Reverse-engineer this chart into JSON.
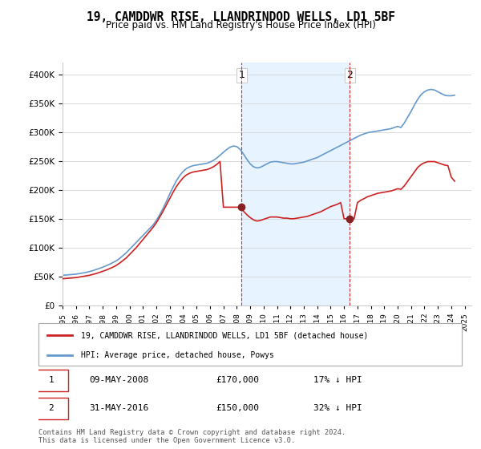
{
  "title": "19, CAMDDWR RISE, LLANDRINDOD WELLS, LD1 5BF",
  "subtitle": "Price paid vs. HM Land Registry's House Price Index (HPI)",
  "hpi_label": "HPI: Average price, detached house, Powys",
  "property_label": "19, CAMDDWR RISE, LLANDRINDOD WELLS, LD1 5BF (detached house)",
  "sale1_date": "09-MAY-2008",
  "sale1_price": 170000,
  "sale1_pct": "17% ↓ HPI",
  "sale2_date": "31-MAY-2016",
  "sale2_price": 150000,
  "sale2_pct": "32% ↓ HPI",
  "sale1_x": 2008.36,
  "sale2_x": 2016.42,
  "ylim": [
    0,
    420000
  ],
  "xlim_start": 1995,
  "xlim_end": 2025.5,
  "hpi_color": "#6699cc",
  "property_color": "#cc2222",
  "sale_marker_color": "#882222",
  "vline_color": "#cc3333",
  "shading_color": "#ddeeff",
  "background_color": "#f5f5f5",
  "footer": "Contains HM Land Registry data © Crown copyright and database right 2024.\nThis data is licensed under the Open Government Licence v3.0.",
  "hpi_data_x": [
    1995.0,
    1995.25,
    1995.5,
    1995.75,
    1996.0,
    1996.25,
    1996.5,
    1996.75,
    1997.0,
    1997.25,
    1997.5,
    1997.75,
    1998.0,
    1998.25,
    1998.5,
    1998.75,
    1999.0,
    1999.25,
    1999.5,
    1999.75,
    2000.0,
    2000.25,
    2000.5,
    2000.75,
    2001.0,
    2001.25,
    2001.5,
    2001.75,
    2002.0,
    2002.25,
    2002.5,
    2002.75,
    2003.0,
    2003.25,
    2003.5,
    2003.75,
    2004.0,
    2004.25,
    2004.5,
    2004.75,
    2005.0,
    2005.25,
    2005.5,
    2005.75,
    2006.0,
    2006.25,
    2006.5,
    2006.75,
    2007.0,
    2007.25,
    2007.5,
    2007.75,
    2008.0,
    2008.25,
    2008.5,
    2008.75,
    2009.0,
    2009.25,
    2009.5,
    2009.75,
    2010.0,
    2010.25,
    2010.5,
    2010.75,
    2011.0,
    2011.25,
    2011.5,
    2011.75,
    2012.0,
    2012.25,
    2012.5,
    2012.75,
    2013.0,
    2013.25,
    2013.5,
    2013.75,
    2014.0,
    2014.25,
    2014.5,
    2014.75,
    2015.0,
    2015.25,
    2015.5,
    2015.75,
    2016.0,
    2016.25,
    2016.5,
    2016.75,
    2017.0,
    2017.25,
    2017.5,
    2017.75,
    2018.0,
    2018.25,
    2018.5,
    2018.75,
    2019.0,
    2019.25,
    2019.5,
    2019.75,
    2020.0,
    2020.25,
    2020.5,
    2020.75,
    2021.0,
    2021.25,
    2021.5,
    2021.75,
    2022.0,
    2022.25,
    2022.5,
    2022.75,
    2023.0,
    2023.25,
    2023.5,
    2023.75,
    2024.0,
    2024.25
  ],
  "hpi_data_y": [
    52000,
    52500,
    53000,
    53500,
    54000,
    55000,
    56000,
    57000,
    58500,
    60000,
    62000,
    64000,
    66000,
    68500,
    71000,
    74000,
    77000,
    81000,
    86000,
    91000,
    97000,
    103000,
    109000,
    115000,
    121000,
    127000,
    133000,
    139000,
    147000,
    157000,
    168000,
    180000,
    193000,
    205000,
    216000,
    225000,
    232000,
    237000,
    240000,
    242000,
    243000,
    244000,
    245000,
    246000,
    248000,
    251000,
    255000,
    260000,
    265000,
    270000,
    274000,
    276000,
    275000,
    270000,
    262000,
    253000,
    245000,
    240000,
    238000,
    239000,
    242000,
    245000,
    248000,
    249000,
    249000,
    248000,
    247000,
    246000,
    245000,
    245000,
    246000,
    247000,
    248000,
    250000,
    252000,
    254000,
    256000,
    259000,
    262000,
    265000,
    268000,
    271000,
    274000,
    277000,
    280000,
    283000,
    286000,
    289000,
    292000,
    295000,
    297000,
    299000,
    300000,
    301000,
    302000,
    303000,
    304000,
    305000,
    306000,
    308000,
    310000,
    308000,
    316000,
    326000,
    336000,
    347000,
    357000,
    365000,
    370000,
    373000,
    374000,
    373000,
    370000,
    367000,
    364000,
    363000,
    363000,
    364000
  ],
  "prop_data_x": [
    1995.0,
    1995.25,
    1995.5,
    1995.75,
    1996.0,
    1996.25,
    1996.5,
    1996.75,
    1997.0,
    1997.25,
    1997.5,
    1997.75,
    1998.0,
    1998.25,
    1998.5,
    1998.75,
    1999.0,
    1999.25,
    1999.5,
    1999.75,
    2000.0,
    2000.25,
    2000.5,
    2000.75,
    2001.0,
    2001.25,
    2001.5,
    2001.75,
    2002.0,
    2002.25,
    2002.5,
    2002.75,
    2003.0,
    2003.25,
    2003.5,
    2003.75,
    2004.0,
    2004.25,
    2004.5,
    2004.75,
    2005.0,
    2005.25,
    2005.5,
    2005.75,
    2006.0,
    2006.25,
    2006.5,
    2006.75,
    2007.0,
    2007.25,
    2007.5,
    2007.75,
    2008.0,
    2008.25,
    2008.5,
    2008.75,
    2009.0,
    2009.25,
    2009.5,
    2009.75,
    2010.0,
    2010.25,
    2010.5,
    2010.75,
    2011.0,
    2011.25,
    2011.5,
    2011.75,
    2012.0,
    2012.25,
    2012.5,
    2012.75,
    2013.0,
    2013.25,
    2013.5,
    2013.75,
    2014.0,
    2014.25,
    2014.5,
    2014.75,
    2015.0,
    2015.25,
    2015.5,
    2015.75,
    2016.0,
    2016.25,
    2016.5,
    2016.75,
    2017.0,
    2017.25,
    2017.5,
    2017.75,
    2018.0,
    2018.25,
    2018.5,
    2018.75,
    2019.0,
    2019.25,
    2019.5,
    2019.75,
    2020.0,
    2020.25,
    2020.5,
    2020.75,
    2021.0,
    2021.25,
    2021.5,
    2021.75,
    2022.0,
    2022.25,
    2022.5,
    2022.75,
    2023.0,
    2023.25,
    2023.5,
    2023.75,
    2024.0,
    2024.25
  ],
  "prop_data_y": [
    46000,
    46500,
    47000,
    47500,
    48000,
    49000,
    50000,
    51000,
    52000,
    53500,
    55000,
    57000,
    59000,
    61000,
    63500,
    66000,
    69000,
    73000,
    77500,
    82000,
    88000,
    94000,
    100000,
    107000,
    114000,
    121000,
    128000,
    135000,
    143000,
    153000,
    163000,
    174000,
    185000,
    196000,
    206000,
    214000,
    221000,
    226000,
    229000,
    231000,
    232000,
    233000,
    234000,
    235000,
    237000,
    240000,
    244000,
    249000,
    170000,
    170000,
    170000,
    170000,
    170000,
    170000,
    163000,
    157000,
    152000,
    148000,
    146000,
    147000,
    149000,
    151000,
    153000,
    153000,
    153000,
    152000,
    151000,
    151000,
    150000,
    150000,
    151000,
    152000,
    153000,
    154000,
    156000,
    158000,
    160000,
    162000,
    165000,
    168000,
    171000,
    173000,
    175000,
    178000,
    150000,
    150000,
    150000,
    150000,
    178000,
    182000,
    185000,
    188000,
    190000,
    192000,
    194000,
    195000,
    196000,
    197000,
    198000,
    200000,
    202000,
    201000,
    207000,
    215000,
    223000,
    231000,
    239000,
    244000,
    247000,
    249000,
    249000,
    249000,
    247000,
    245000,
    243000,
    242000,
    222000,
    215000
  ]
}
